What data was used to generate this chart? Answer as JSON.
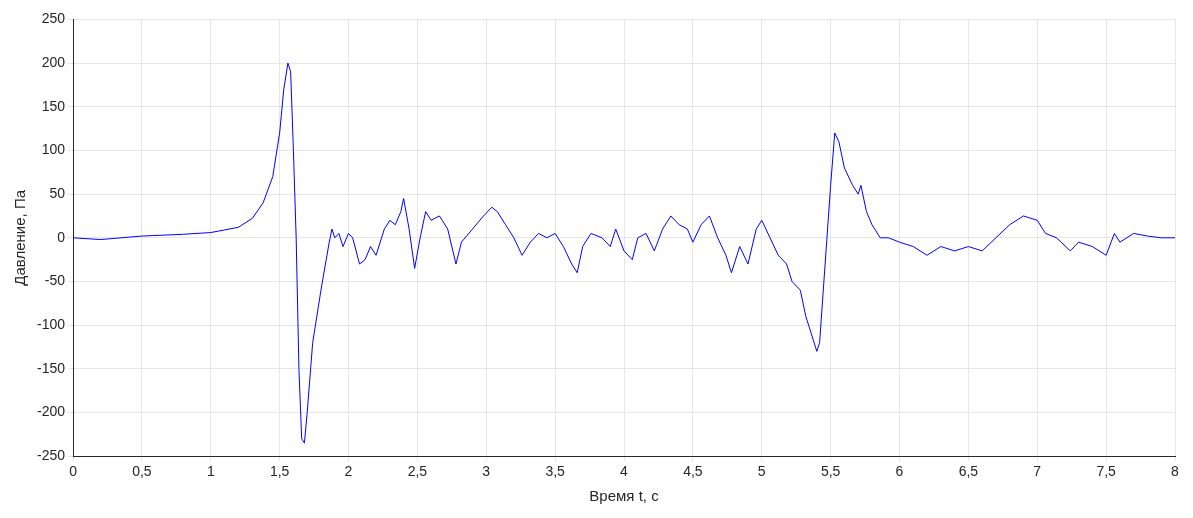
{
  "chart_data": {
    "type": "line",
    "xlabel": "Время t, с",
    "ylabel": "Давление, Па",
    "xlim": [
      0,
      8
    ],
    "ylim": [
      -250,
      250
    ],
    "xticks": [
      0,
      {
        "value": 0.5,
        "label": "0,5"
      },
      1,
      {
        "value": 1.5,
        "label": "1,5"
      },
      2,
      {
        "value": 2.5,
        "label": "2,5"
      },
      3,
      {
        "value": 3.5,
        "label": "3,5"
      },
      4,
      {
        "value": 4.5,
        "label": "4,5"
      },
      5,
      {
        "value": 5.5,
        "label": "5,5"
      },
      6,
      {
        "value": 6.5,
        "label": "6,5"
      },
      7,
      {
        "value": 7.5,
        "label": "7,5"
      },
      8
    ],
    "yticks": [
      -250,
      -200,
      -150,
      -100,
      -50,
      0,
      50,
      100,
      150,
      200,
      250
    ],
    "grid": true,
    "legend": false,
    "marker": "none",
    "line_style": "solid",
    "series": [
      {
        "color": "#0000ff",
        "x": [
          0,
          0.2,
          0.5,
          0.8,
          1.0,
          1.2,
          1.3,
          1.38,
          1.45,
          1.5,
          1.53,
          1.56,
          1.58,
          1.6,
          1.62,
          1.64,
          1.66,
          1.68,
          1.7,
          1.74,
          1.8,
          1.86,
          1.88,
          1.9,
          1.93,
          1.96,
          2.0,
          2.03,
          2.08,
          2.12,
          2.16,
          2.2,
          2.26,
          2.3,
          2.34,
          2.38,
          2.4,
          2.44,
          2.48,
          2.52,
          2.56,
          2.6,
          2.66,
          2.72,
          2.78,
          2.82,
          2.9,
          2.98,
          3.04,
          3.08,
          3.14,
          3.2,
          3.26,
          3.32,
          3.38,
          3.44,
          3.5,
          3.56,
          3.62,
          3.66,
          3.7,
          3.76,
          3.84,
          3.9,
          3.94,
          4.0,
          4.06,
          4.1,
          4.16,
          4.22,
          4.28,
          4.34,
          4.4,
          4.46,
          4.5,
          4.56,
          4.62,
          4.68,
          4.74,
          4.78,
          4.84,
          4.9,
          4.96,
          5.0,
          5.06,
          5.12,
          5.18,
          5.22,
          5.28,
          5.32,
          5.36,
          5.4,
          5.42,
          5.46,
          5.5,
          5.53,
          5.56,
          5.6,
          5.66,
          5.7,
          5.72,
          5.76,
          5.8,
          5.86,
          5.92,
          6.0,
          6.1,
          6.2,
          6.3,
          6.4,
          6.5,
          6.6,
          6.7,
          6.8,
          6.9,
          7.0,
          7.06,
          7.14,
          7.24,
          7.3,
          7.4,
          7.5,
          7.56,
          7.6,
          7.7,
          7.8,
          7.9,
          8.0
        ],
        "values": [
          0,
          -2,
          2,
          4,
          6,
          12,
          22,
          40,
          70,
          120,
          170,
          200,
          190,
          100,
          0,
          -150,
          -230,
          -235,
          -200,
          -120,
          -60,
          -5,
          10,
          0,
          5,
          -10,
          5,
          0,
          -30,
          -25,
          -10,
          -20,
          10,
          20,
          15,
          30,
          45,
          10,
          -35,
          0,
          30,
          20,
          25,
          10,
          -30,
          -5,
          10,
          25,
          35,
          30,
          15,
          0,
          -20,
          -5,
          5,
          0,
          5,
          -10,
          -30,
          -40,
          -10,
          5,
          0,
          -10,
          10,
          -15,
          -25,
          0,
          5,
          -15,
          10,
          25,
          15,
          10,
          -5,
          15,
          25,
          0,
          -20,
          -40,
          -10,
          -30,
          10,
          20,
          0,
          -20,
          -30,
          -50,
          -60,
          -90,
          -110,
          -130,
          -120,
          -30,
          60,
          120,
          110,
          80,
          60,
          50,
          60,
          30,
          15,
          0,
          0,
          -5,
          -10,
          -20,
          -10,
          -15,
          -10,
          -15,
          0,
          15,
          25,
          20,
          5,
          0,
          -15,
          -5,
          -10,
          -20,
          5,
          -5,
          5,
          2,
          0,
          0
        ]
      }
    ]
  }
}
